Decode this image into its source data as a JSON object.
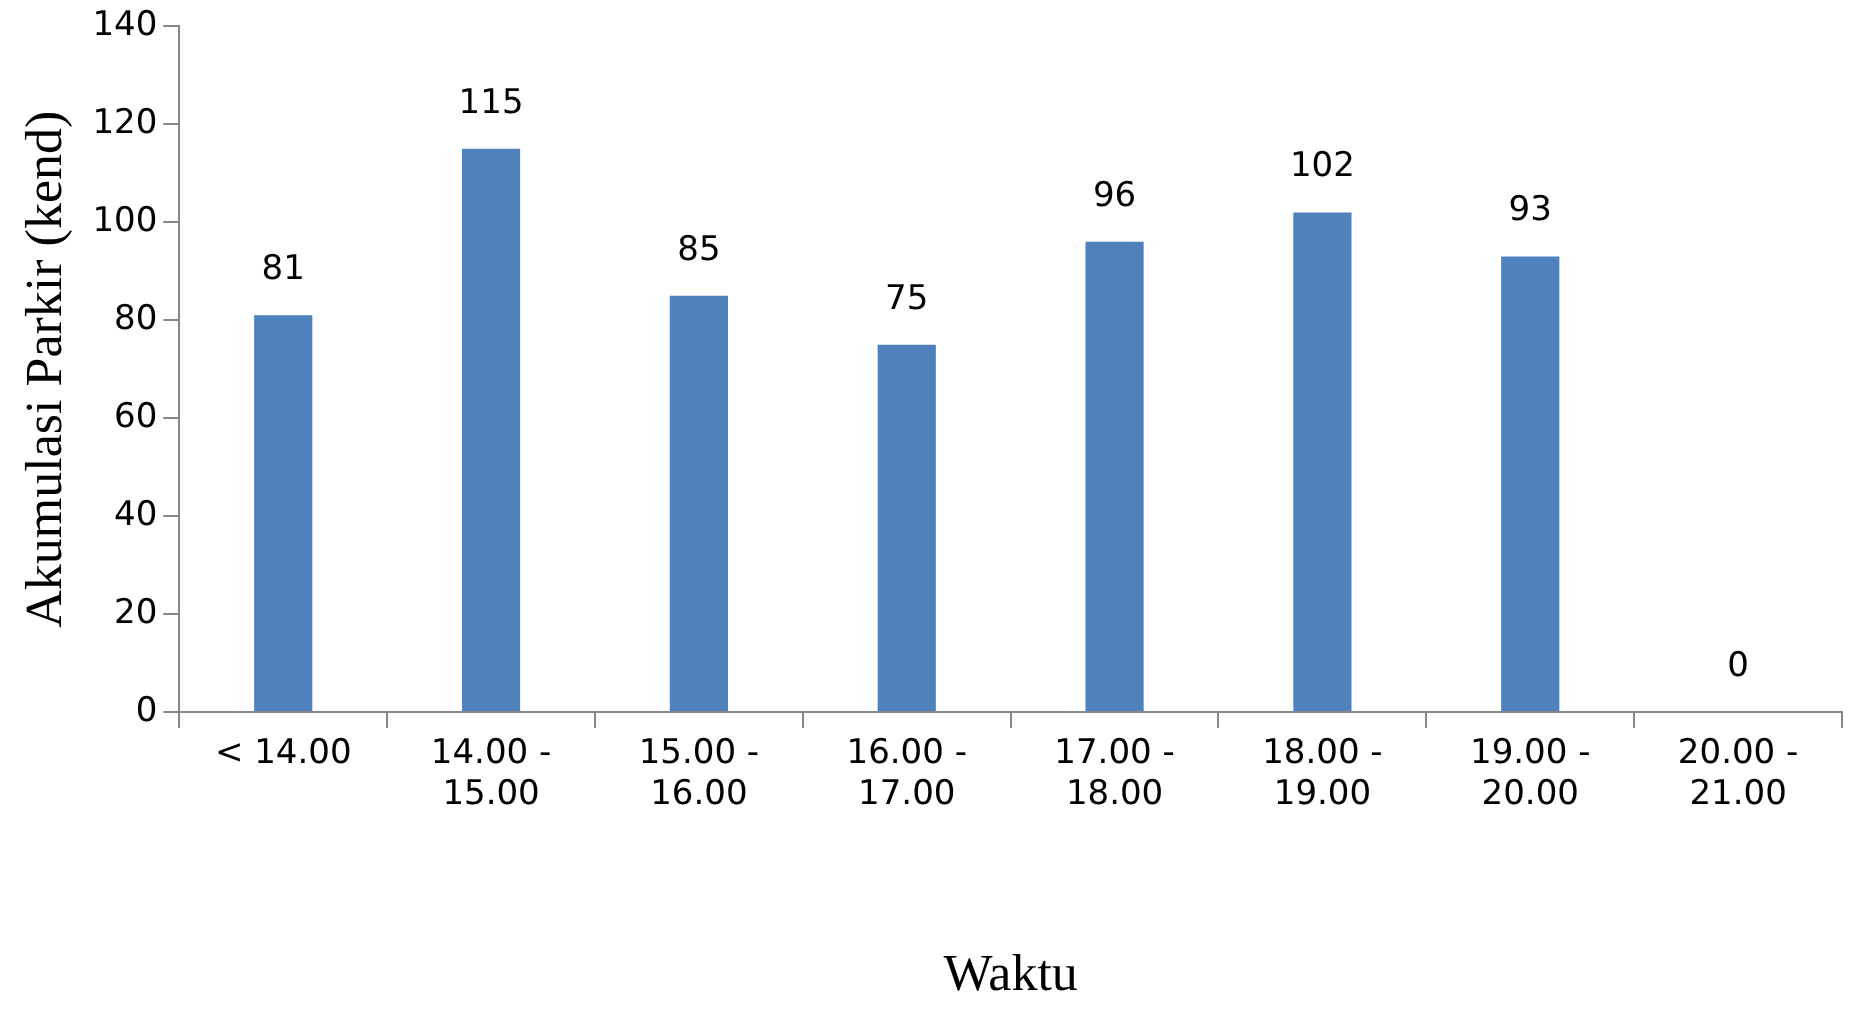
{
  "chart_data": {
    "type": "bar",
    "xlabel": "Waktu",
    "ylabel": "Akumulasi Parkir (kend)",
    "categories": [
      "< 14.00",
      "14.00 - 15.00",
      "15.00 - 16.00",
      "16.00 - 17.00",
      "17.00 - 18.00",
      "18.00 - 19.00",
      "19.00 - 20.00",
      "20.00 - 21.00"
    ],
    "values": [
      81,
      115,
      85,
      75,
      96,
      102,
      93,
      0
    ],
    "color": "#4f81bd",
    "ylim": [
      0,
      140
    ],
    "yticks": [
      0,
      20,
      40,
      60,
      80,
      100,
      120,
      140
    ],
    "grid": false,
    "data_labels": true
  }
}
